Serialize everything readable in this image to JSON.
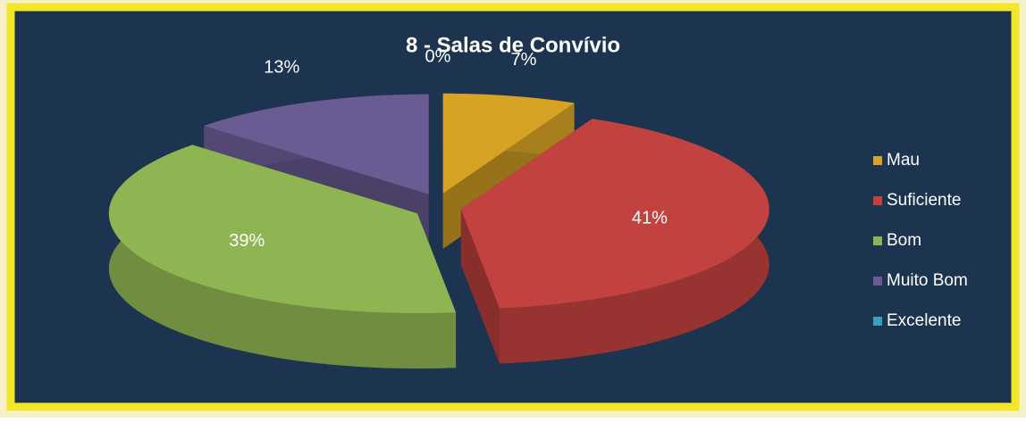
{
  "chart_data": {
    "type": "pie",
    "title": "8 - Salas de Convívio",
    "categories": [
      "Mau",
      "Suficiente",
      "Bom",
      "Muito Bom",
      "Excelente"
    ],
    "values": [
      7,
      41,
      39,
      13,
      0
    ],
    "value_labels": [
      "7%",
      "41%",
      "39%",
      "13%",
      "0%"
    ],
    "colors": [
      "#d6a325",
      "#c2423f",
      "#8fb552",
      "#6b5b93",
      "#3c9fc0"
    ],
    "legend": "right"
  }
}
